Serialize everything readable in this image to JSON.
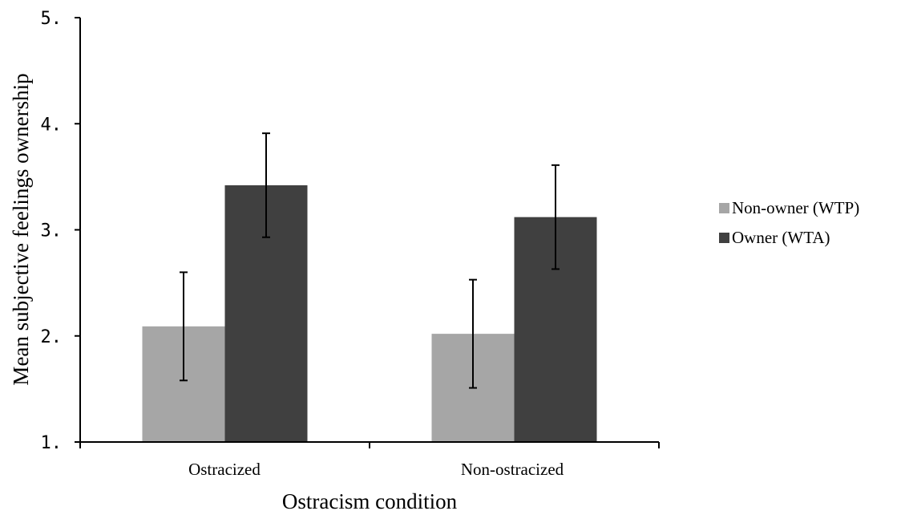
{
  "chart_data": {
    "type": "bar",
    "title": "",
    "xlabel": "Ostracism condition",
    "ylabel": "Mean subjective feelings ownership",
    "ylim": [
      1,
      5
    ],
    "yticks": [
      "1.",
      "2.",
      "3.",
      "4.",
      "5."
    ],
    "ytick_values": [
      1,
      2,
      3,
      4,
      5
    ],
    "categories": [
      "Ostracized",
      "Non-ostracized"
    ],
    "series": [
      {
        "name": "Non-owner (WTP)",
        "color": "#a6a6a6",
        "values": [
          2.09,
          2.02
        ],
        "error": [
          0.51,
          0.51
        ]
      },
      {
        "name": "Owner (WTA)",
        "color": "#404040",
        "values": [
          3.42,
          3.12
        ],
        "error": [
          0.49,
          0.49
        ]
      }
    ],
    "grid": false,
    "legend_position": "right"
  }
}
